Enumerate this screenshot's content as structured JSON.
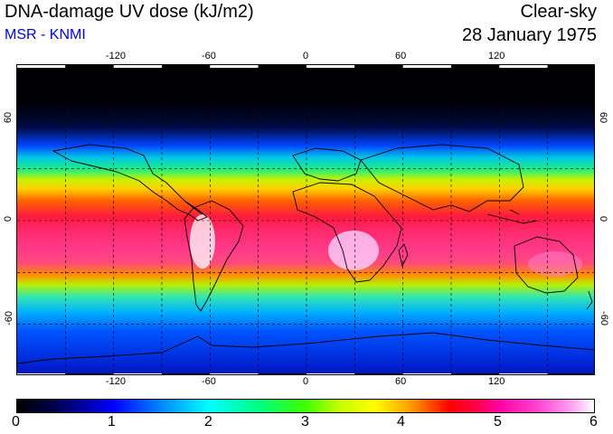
{
  "header": {
    "title": "DNA-damage UV dose (kJ/m2)",
    "subtitle": "MSR - KNMI",
    "condition": "Clear-sky",
    "date": "28 January 1975"
  },
  "map": {
    "projection": "equirectangular",
    "lon_range": [
      -180,
      180
    ],
    "lat_range": [
      -90,
      90
    ],
    "grid_spacing_deg": 30,
    "gridlines": "dashed",
    "lon_ticks_labeled": [
      "-120",
      "-60",
      "0",
      "60",
      "120"
    ],
    "lat_ticks_labeled": [
      "60",
      "0",
      "-60"
    ],
    "land_outlines": "coastlines in black"
  },
  "colorbar": {
    "min": 0,
    "max": 6,
    "labels": [
      "0",
      "1",
      "2",
      "3",
      "4",
      "5",
      "6"
    ],
    "colors": [
      "#000000",
      "#0000ff",
      "#00ffff",
      "#40ff00",
      "#ffff00",
      "#ff0000",
      "#ff00a0",
      "#ffffff"
    ]
  }
}
